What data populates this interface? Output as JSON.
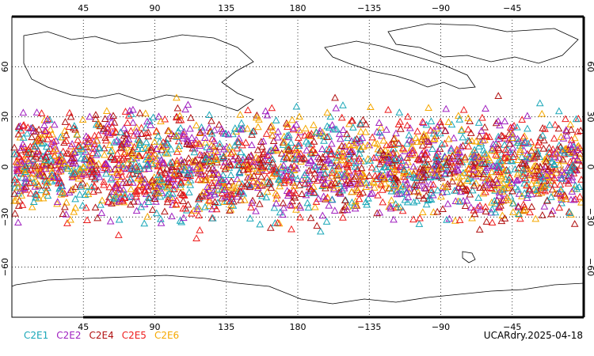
{
  "map": {
    "lon_ticks_top": [
      "45",
      "90",
      "135",
      "180",
      "−135",
      "−90",
      "−45"
    ],
    "lon_ticks_bottom": [
      "45",
      "90",
      "135",
      "180",
      "−135",
      "−90",
      "−45"
    ],
    "lat_ticks_left": [
      "60",
      "30",
      "0",
      "−30",
      "−60"
    ],
    "lat_ticks_right": [
      "60",
      "30",
      "0",
      "−30",
      "−60"
    ],
    "lat_values": [
      60,
      30,
      0,
      -30,
      -60
    ],
    "lon_range": [
      0,
      360
    ],
    "lat_range": [
      -90,
      90
    ],
    "grid": "dotted"
  },
  "legend": [
    {
      "label": "C2E1",
      "color": "#1aa7b8"
    },
    {
      "label": "C2E2",
      "color": "#a020c0"
    },
    {
      "label": "C2E4",
      "color": "#b01010"
    },
    {
      "label": "C2E5",
      "color": "#ee1c1c"
    },
    {
      "label": "C2E6",
      "color": "#f5a800"
    }
  ],
  "footer": {
    "label": "UCARdry.2025-04-18"
  },
  "observations": {
    "marker": "triangle-outline",
    "lat_band": [
      -45,
      45
    ]
  }
}
